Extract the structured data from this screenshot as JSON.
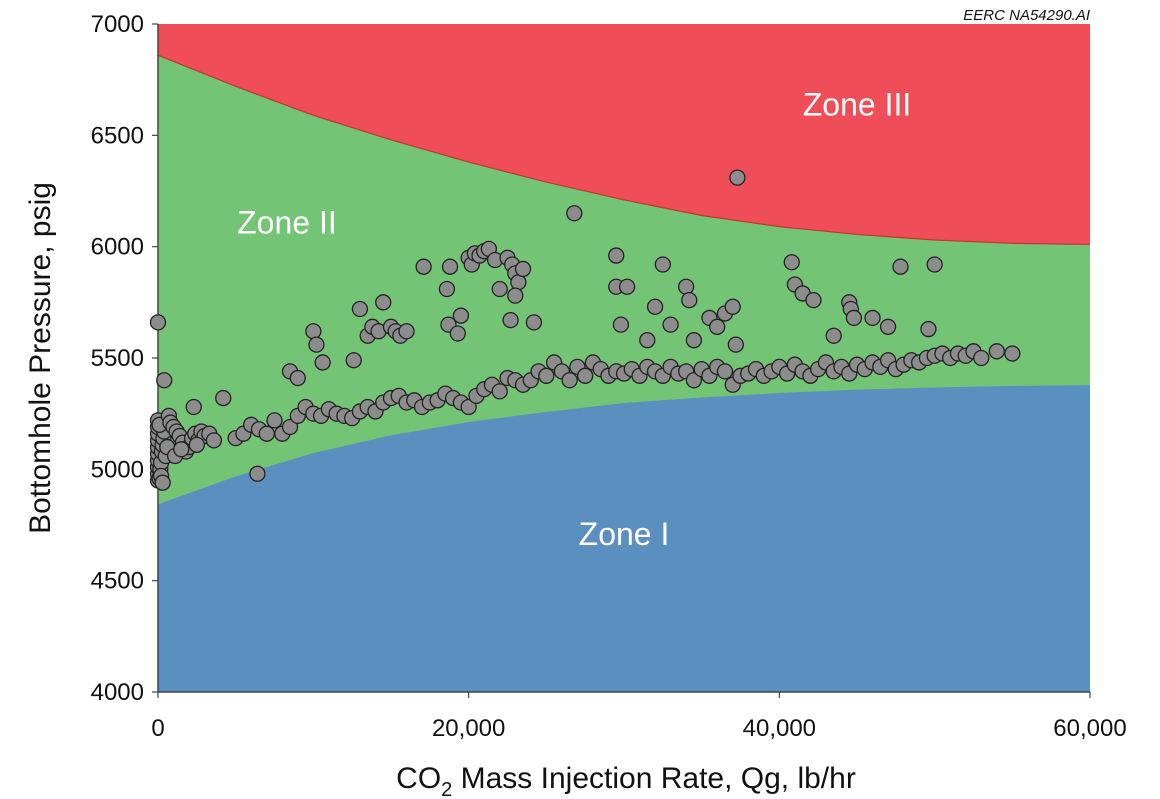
{
  "chart_data": {
    "type": "scatter",
    "credit": "EERC NA54290.AI",
    "xlabel": {
      "main": "CO",
      "sub": "2",
      "rest": " Mass Injection Rate, Qg, lb/hr"
    },
    "ylabel": "Bottomhole Pressure, psig",
    "xlim": [
      0,
      60000
    ],
    "ylim": [
      4000,
      7000
    ],
    "x_ticks": [
      0,
      20000,
      40000,
      60000
    ],
    "x_tick_labels": [
      "0",
      "20,000",
      "40,000",
      "60,000"
    ],
    "y_ticks": [
      4000,
      4500,
      5000,
      5500,
      6000,
      6500,
      7000
    ],
    "y_tick_labels": [
      "4000",
      "4500",
      "5000",
      "5500",
      "6000",
      "6500",
      "7000"
    ],
    "grid": false,
    "colors": {
      "zone_1": "#5b8fbf",
      "zone_2": "#74c476",
      "zone_3": "#ef4d57",
      "boundary": "#c0392b",
      "point_fill": "#8c8c8c",
      "point_stroke": "#222222"
    },
    "zones": [
      {
        "name": "Zone I",
        "label_at": [
          30000,
          4660
        ]
      },
      {
        "name": "Zone II",
        "label_at": [
          8300,
          6060
        ]
      },
      {
        "name": "Zone III",
        "label_at": [
          45000,
          6590
        ]
      }
    ],
    "boundaries": {
      "lower": {
        "x": [
          0,
          5000,
          10000,
          15000,
          20000,
          25000,
          30000,
          35000,
          40000,
          45000,
          50000,
          55000,
          60000
        ],
        "y": [
          4840,
          4965,
          5070,
          5150,
          5210,
          5255,
          5295,
          5320,
          5340,
          5355,
          5365,
          5372,
          5375
        ]
      },
      "upper": {
        "x": [
          0,
          5000,
          10000,
          15000,
          20000,
          25000,
          30000,
          35000,
          40000,
          45000,
          50000,
          55000,
          60000
        ],
        "y": [
          6860,
          6720,
          6590,
          6480,
          6380,
          6290,
          6210,
          6140,
          6090,
          6055,
          6030,
          6015,
          6010
        ]
      }
    },
    "series": [
      {
        "points": [
          [
            0,
            4950
          ],
          [
            0,
            4980
          ],
          [
            0,
            5010
          ],
          [
            0,
            5040
          ],
          [
            0,
            5070
          ],
          [
            0,
            5100
          ],
          [
            0,
            5130
          ],
          [
            0,
            5160
          ],
          [
            0,
            5190
          ],
          [
            0,
            5220
          ],
          [
            100,
            4960
          ],
          [
            150,
            5000
          ],
          [
            200,
            5030
          ],
          [
            250,
            5080
          ],
          [
            300,
            5110
          ],
          [
            350,
            5140
          ],
          [
            400,
            5170
          ],
          [
            100,
            5200
          ],
          [
            200,
            4970
          ],
          [
            300,
            4940
          ],
          [
            500,
            5060
          ],
          [
            600,
            5100
          ],
          [
            700,
            5240
          ],
          [
            800,
            5210
          ],
          [
            1000,
            5190
          ],
          [
            1200,
            5170
          ],
          [
            1400,
            5150
          ],
          [
            1600,
            5120
          ],
          [
            1800,
            5080
          ],
          [
            2000,
            5100
          ],
          [
            2200,
            5140
          ],
          [
            2400,
            5160
          ],
          [
            2600,
            5130
          ],
          [
            2800,
            5170
          ],
          [
            3000,
            5150
          ],
          [
            3300,
            5160
          ],
          [
            3600,
            5130
          ],
          [
            1100,
            5060
          ],
          [
            1500,
            5090
          ],
          [
            2500,
            5110
          ],
          [
            0,
            5660
          ],
          [
            400,
            5400
          ],
          [
            2300,
            5280
          ],
          [
            4200,
            5320
          ],
          [
            6400,
            4980
          ],
          [
            5000,
            5140
          ],
          [
            5500,
            5160
          ],
          [
            6000,
            5200
          ],
          [
            6500,
            5180
          ],
          [
            7000,
            5160
          ],
          [
            7500,
            5220
          ],
          [
            8000,
            5160
          ],
          [
            8500,
            5190
          ],
          [
            9000,
            5240
          ],
          [
            9500,
            5280
          ],
          [
            10000,
            5250
          ],
          [
            10500,
            5240
          ],
          [
            11000,
            5270
          ],
          [
            11500,
            5250
          ],
          [
            12000,
            5240
          ],
          [
            12500,
            5230
          ],
          [
            13000,
            5260
          ],
          [
            13500,
            5280
          ],
          [
            14000,
            5260
          ],
          [
            14500,
            5300
          ],
          [
            15000,
            5320
          ],
          [
            15500,
            5330
          ],
          [
            16000,
            5300
          ],
          [
            16500,
            5310
          ],
          [
            17000,
            5280
          ],
          [
            17500,
            5300
          ],
          [
            18000,
            5310
          ],
          [
            18500,
            5340
          ],
          [
            19000,
            5320
          ],
          [
            19500,
            5300
          ],
          [
            20000,
            5280
          ],
          [
            20500,
            5330
          ],
          [
            21000,
            5360
          ],
          [
            21500,
            5380
          ],
          [
            22000,
            5350
          ],
          [
            22500,
            5410
          ],
          [
            23000,
            5400
          ],
          [
            23500,
            5380
          ],
          [
            24000,
            5400
          ],
          [
            24500,
            5440
          ],
          [
            25000,
            5420
          ],
          [
            25500,
            5480
          ],
          [
            26000,
            5440
          ],
          [
            26500,
            5400
          ],
          [
            27000,
            5460
          ],
          [
            27500,
            5420
          ],
          [
            28000,
            5480
          ],
          [
            28500,
            5450
          ],
          [
            29000,
            5420
          ],
          [
            29500,
            5440
          ],
          [
            30000,
            5430
          ],
          [
            30500,
            5450
          ],
          [
            31000,
            5420
          ],
          [
            31500,
            5460
          ],
          [
            32000,
            5440
          ],
          [
            32500,
            5420
          ],
          [
            33000,
            5460
          ],
          [
            33500,
            5430
          ],
          [
            34000,
            5440
          ],
          [
            34500,
            5400
          ],
          [
            35000,
            5450
          ],
          [
            35500,
            5420
          ],
          [
            36000,
            5460
          ],
          [
            36500,
            5440
          ],
          [
            37000,
            5380
          ],
          [
            37500,
            5420
          ],
          [
            38000,
            5430
          ],
          [
            38500,
            5450
          ],
          [
            39000,
            5420
          ],
          [
            39500,
            5440
          ],
          [
            40000,
            5460
          ],
          [
            40500,
            5430
          ],
          [
            41000,
            5470
          ],
          [
            41500,
            5440
          ],
          [
            42000,
            5420
          ],
          [
            42500,
            5450
          ],
          [
            43000,
            5480
          ],
          [
            43500,
            5440
          ],
          [
            44000,
            5460
          ],
          [
            44500,
            5430
          ],
          [
            45000,
            5470
          ],
          [
            45500,
            5450
          ],
          [
            46000,
            5480
          ],
          [
            46500,
            5460
          ],
          [
            47000,
            5490
          ],
          [
            47500,
            5450
          ],
          [
            48000,
            5470
          ],
          [
            48500,
            5490
          ],
          [
            49000,
            5480
          ],
          [
            49500,
            5500
          ],
          [
            50000,
            5510
          ],
          [
            50500,
            5520
          ],
          [
            51000,
            5500
          ],
          [
            51500,
            5520
          ],
          [
            52000,
            5510
          ],
          [
            52500,
            5530
          ],
          [
            53000,
            5500
          ],
          [
            54000,
            5530
          ],
          [
            55000,
            5520
          ],
          [
            8500,
            5440
          ],
          [
            9000,
            5410
          ],
          [
            10000,
            5620
          ],
          [
            10200,
            5560
          ],
          [
            10600,
            5480
          ],
          [
            12600,
            5490
          ],
          [
            13000,
            5720
          ],
          [
            13500,
            5600
          ],
          [
            13800,
            5640
          ],
          [
            14200,
            5620
          ],
          [
            14500,
            5750
          ],
          [
            15000,
            5640
          ],
          [
            15300,
            5620
          ],
          [
            15600,
            5600
          ],
          [
            16000,
            5620
          ],
          [
            17100,
            5910
          ],
          [
            18600,
            5810
          ],
          [
            18800,
            5910
          ],
          [
            18700,
            5650
          ],
          [
            19300,
            5610
          ],
          [
            19500,
            5690
          ],
          [
            20000,
            5950
          ],
          [
            20200,
            5920
          ],
          [
            20400,
            5970
          ],
          [
            20700,
            5960
          ],
          [
            21000,
            5980
          ],
          [
            21300,
            5990
          ],
          [
            21700,
            5940
          ],
          [
            22000,
            5810
          ],
          [
            22500,
            5950
          ],
          [
            22800,
            5920
          ],
          [
            23000,
            5880
          ],
          [
            23200,
            5840
          ],
          [
            23500,
            5900
          ],
          [
            23000,
            5780
          ],
          [
            22700,
            5670
          ],
          [
            24200,
            5660
          ],
          [
            26800,
            6150
          ],
          [
            29500,
            5960
          ],
          [
            29500,
            5820
          ],
          [
            30200,
            5820
          ],
          [
            29800,
            5650
          ],
          [
            31500,
            5580
          ],
          [
            32000,
            5730
          ],
          [
            32500,
            5920
          ],
          [
            33000,
            5650
          ],
          [
            34000,
            5820
          ],
          [
            34200,
            5760
          ],
          [
            34500,
            5580
          ],
          [
            35500,
            5680
          ],
          [
            36000,
            5640
          ],
          [
            36500,
            5700
          ],
          [
            37000,
            5730
          ],
          [
            37200,
            5560
          ],
          [
            37300,
            6310
          ],
          [
            40800,
            5930
          ],
          [
            41000,
            5830
          ],
          [
            41500,
            5790
          ],
          [
            42200,
            5760
          ],
          [
            43500,
            5600
          ],
          [
            44500,
            5750
          ],
          [
            44600,
            5720
          ],
          [
            44800,
            5680
          ],
          [
            46000,
            5680
          ],
          [
            47000,
            5640
          ],
          [
            47800,
            5910
          ],
          [
            49600,
            5630
          ],
          [
            50000,
            5920
          ]
        ]
      }
    ]
  }
}
